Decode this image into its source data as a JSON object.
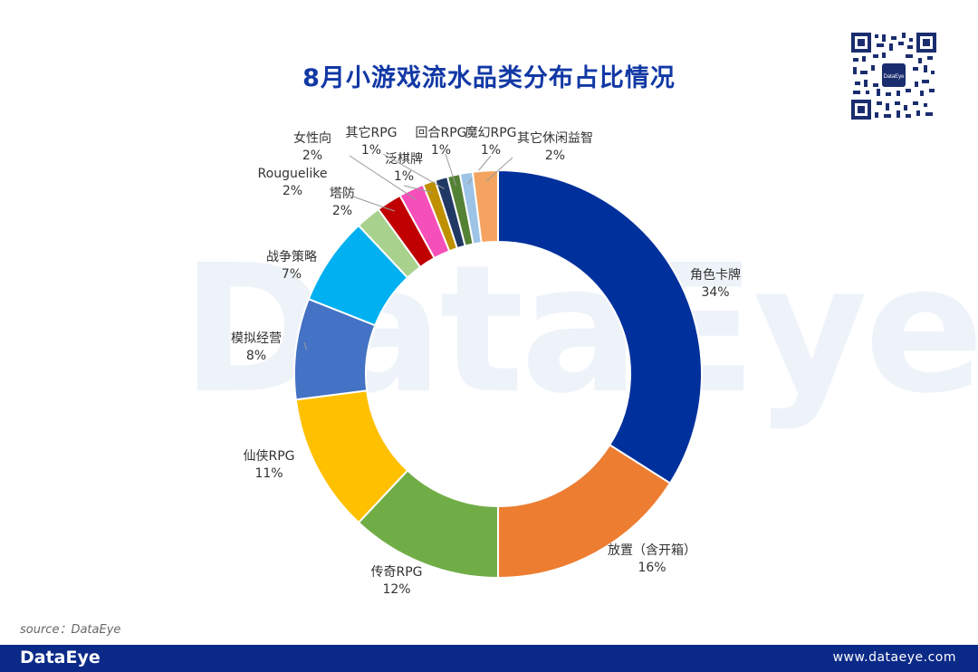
{
  "title": "8月小游戏流水品类分布占比情况",
  "watermark": "DataEye",
  "source": "source：DataEye",
  "footer": {
    "brand": "DataEye",
    "url": "www.dataeye.com"
  },
  "qr_center_text": "DataEye",
  "chart_data": {
    "type": "pie",
    "subtype": "donut",
    "title": "8月小游戏流水品类分布占比情况",
    "unit": "%",
    "start": "12 o'clock, clockwise",
    "slices": [
      {
        "label": "角色卡牌",
        "value": 34,
        "pct": "34%",
        "color": "#00309c"
      },
      {
        "label": "放置（含开箱）",
        "value": 16,
        "pct": "16%",
        "color": "#ed7d31"
      },
      {
        "label": "传奇RPG",
        "value": 12,
        "pct": "12%",
        "color": "#70ad47"
      },
      {
        "label": "仙侠RPG",
        "value": 11,
        "pct": "11%",
        "color": "#ffc000"
      },
      {
        "label": "模拟经营",
        "value": 8,
        "pct": "8%",
        "color": "#4472c4"
      },
      {
        "label": "战争策略",
        "value": 7,
        "pct": "7%",
        "color": "#00b0f0"
      },
      {
        "label": "塔防",
        "value": 2,
        "pct": "2%",
        "color": "#a9d18e"
      },
      {
        "label": "Rouguelike",
        "value": 2,
        "pct": "2%",
        "color": "#c00000"
      },
      {
        "label": "女性向",
        "value": 2,
        "pct": "2%",
        "color": "#f54fba"
      },
      {
        "label": "泛棋牌",
        "value": 1,
        "pct": "1%",
        "color": "#bf9000"
      },
      {
        "label": "其它RPG",
        "value": 1,
        "pct": "1%",
        "color": "#203864"
      },
      {
        "label": "回合RPG",
        "value": 1,
        "pct": "1%",
        "color": "#548235"
      },
      {
        "label": "魔幻RPG",
        "value": 1,
        "pct": "1%",
        "color": "#9dc3e6"
      },
      {
        "label": "其它休闲益智",
        "value": 2,
        "pct": "2%",
        "color": "#f4a460"
      }
    ]
  }
}
